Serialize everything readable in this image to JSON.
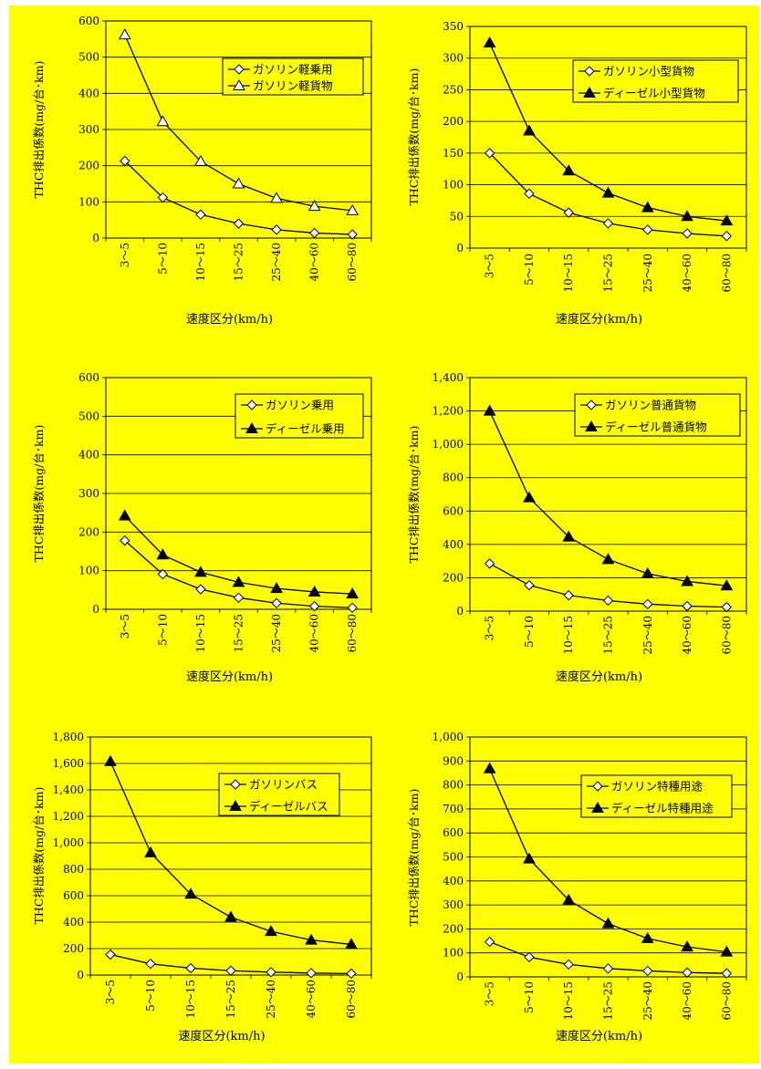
{
  "colors": {
    "background": "#ffff00",
    "page": "#ffffff",
    "line": "#000000"
  },
  "chart_data": [
    {
      "type": "line",
      "categories": [
        "3～5",
        "5～10",
        "10～15",
        "15～25",
        "25～40",
        "40～60",
        "60～80"
      ],
      "xlabel": "速度区分(km/h)",
      "ylabel": "THC排出係数(mg/台･km)",
      "ylim": [
        0,
        600
      ],
      "ystep": 100,
      "ytick_labels": [
        "0",
        "100",
        "200",
        "300",
        "400",
        "500",
        "600"
      ],
      "grid": true,
      "legend_position": "top-right",
      "series": [
        {
          "name": "ガソリン軽乗用",
          "marker": "diamond-open",
          "values": [
            213,
            112,
            65,
            40,
            23,
            14,
            10
          ]
        },
        {
          "name": "ガソリン軽貨物",
          "marker": "triangle-open",
          "values": [
            562,
            322,
            212,
            150,
            110,
            88,
            76
          ]
        }
      ]
    },
    {
      "type": "line",
      "categories": [
        "3～5",
        "5～10",
        "10～15",
        "15～25",
        "25～40",
        "40～60",
        "60～80"
      ],
      "xlabel": "速度区分(km/h)",
      "ylabel": "THC排出係数(mg/台･km)",
      "ylim": [
        0,
        350
      ],
      "ystep": 50,
      "ytick_labels": [
        "0",
        "50",
        "100",
        "150",
        "200",
        "250",
        "300",
        "350"
      ],
      "grid": true,
      "legend_position": "top-right",
      "series": [
        {
          "name": "ガソリン小型貨物",
          "marker": "diamond-open",
          "values": [
            150,
            86,
            56,
            39,
            29,
            23,
            19
          ]
        },
        {
          "name": "ディーゼル小型貨物",
          "marker": "triangle-filled",
          "values": [
            324,
            185,
            122,
            87,
            64,
            50,
            43
          ]
        }
      ]
    },
    {
      "type": "line",
      "categories": [
        "3～5",
        "5～10",
        "10～15",
        "15～25",
        "25～40",
        "40～60",
        "60～80"
      ],
      "xlabel": "速度区分(km/h)",
      "ylabel": "THC排出係数(mg/台･km)",
      "ylim": [
        0,
        600
      ],
      "ystep": 100,
      "ytick_labels": [
        "0",
        "100",
        "200",
        "300",
        "400",
        "500",
        "600"
      ],
      "grid": true,
      "legend_position": "top-right",
      "series": [
        {
          "name": "ガソリン乗用",
          "marker": "diamond-open",
          "values": [
            178,
            91,
            52,
            30,
            16,
            8,
            4
          ]
        },
        {
          "name": "ディーゼル乗用",
          "marker": "triangle-filled",
          "values": [
            242,
            141,
            96,
            70,
            54,
            45,
            40
          ]
        }
      ]
    },
    {
      "type": "line",
      "categories": [
        "3～5",
        "5～10",
        "10～15",
        "15～25",
        "25～40",
        "40～60",
        "60～80"
      ],
      "xlabel": "速度区分(km/h)",
      "ylabel": "THC排出係数(mg/台･km)",
      "ylim": [
        0,
        1400
      ],
      "ystep": 200,
      "ytick_labels": [
        "0",
        "200",
        "400",
        "600",
        "800",
        "1,000",
        "1,200",
        "1,400"
      ],
      "grid": true,
      "legend_position": "top-right",
      "series": [
        {
          "name": "ガソリン普通貨物",
          "marker": "diamond-open",
          "values": [
            285,
            155,
            95,
            63,
            42,
            30,
            24
          ]
        },
        {
          "name": "ディーゼル普通貨物",
          "marker": "triangle-filled",
          "values": [
            1200,
            680,
            445,
            310,
            225,
            178,
            152
          ]
        }
      ]
    },
    {
      "type": "line",
      "categories": [
        "3～5",
        "5～10",
        "10～15",
        "15～25",
        "25～40",
        "40～60",
        "60～80"
      ],
      "xlabel": "速度区分(km/h)",
      "ylabel": "THC排出係数(mg/台･km)",
      "ylim": [
        0,
        1800
      ],
      "ystep": 200,
      "ytick_labels": [
        "0",
        "200",
        "400",
        "600",
        "800",
        "1,000",
        "1,200",
        "1,400",
        "1,600",
        "1,800"
      ],
      "grid": true,
      "legend_position": "top-right",
      "series": [
        {
          "name": "ガソリンバス",
          "marker": "diamond-open",
          "values": [
            155,
            85,
            52,
            33,
            22,
            15,
            11
          ]
        },
        {
          "name": "ディーゼルバス",
          "marker": "triangle-filled",
          "values": [
            1615,
            925,
            612,
            438,
            330,
            265,
            232
          ]
        }
      ]
    },
    {
      "type": "line",
      "categories": [
        "3～5",
        "5～10",
        "10～15",
        "15～25",
        "25～40",
        "40～60",
        "60～80"
      ],
      "xlabel": "速度区分(km/h)",
      "ylabel": "THC排出係数(mg/台･km)",
      "ylim": [
        0,
        1000
      ],
      "ystep": 100,
      "ytick_labels": [
        "0",
        "100",
        "200",
        "300",
        "400",
        "500",
        "600",
        "700",
        "800",
        "900",
        "1,000"
      ],
      "grid": true,
      "legend_position": "top-right",
      "series": [
        {
          "name": "ガソリン特種用途",
          "marker": "diamond-open",
          "values": [
            146,
            82,
            52,
            35,
            25,
            18,
            15
          ]
        },
        {
          "name": "ディーゼル特種用途",
          "marker": "triangle-filled",
          "values": [
            868,
            492,
            320,
            222,
            160,
            125,
            104
          ]
        }
      ]
    }
  ]
}
